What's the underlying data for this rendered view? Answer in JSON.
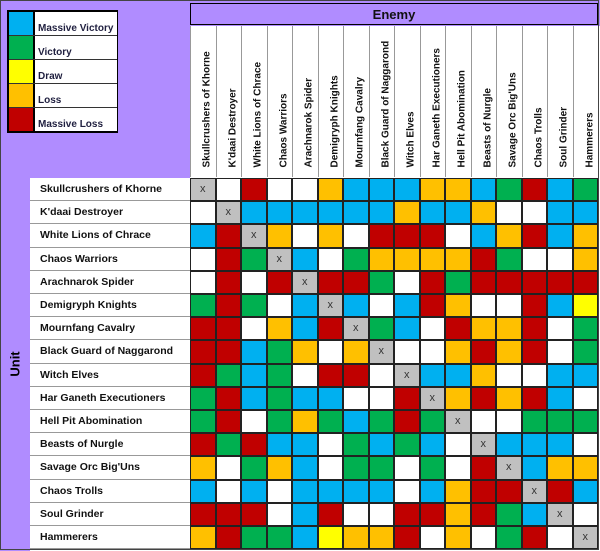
{
  "chart_data": {
    "type": "heatmap",
    "title": "Enemy",
    "ylabel": "Unit",
    "legend": [
      {
        "key": "MV",
        "label": "Massive Victory",
        "color": "#00b0f0"
      },
      {
        "key": "V",
        "label": "Victory",
        "color": "#00b050"
      },
      {
        "key": "D",
        "label": "Draw",
        "color": "#ffff00"
      },
      {
        "key": "L",
        "label": "Loss",
        "color": "#ffc000"
      },
      {
        "key": "ML",
        "label": "Massive Loss",
        "color": "#c00000"
      }
    ],
    "legend_placement": "top-left",
    "blank_color": "#ffffff",
    "self_color": "#c0c0c0",
    "self_mark": "x",
    "columns": [
      "Skullcrushers of Khorne",
      "K'daai Destroyer",
      "White Lions of Chrace",
      "Chaos Warriors",
      "Arachnarok Spider",
      "Demigryph Knights",
      "Mournfang Cavalry",
      "Black Guard of Naggarond",
      "Witch Elves",
      "Har Ganeth Executioners",
      "Hell Pit Abomination",
      "Beasts of Nurgle",
      "Savage Orc Big'Uns",
      "Chaos Trolls",
      "Soul Grinder",
      "Hammerers"
    ],
    "rows": [
      "Skullcrushers of Khorne",
      "K'daai Destroyer",
      "White Lions of Chrace",
      "Chaos Warriors",
      "Arachnarok Spider",
      "Demigryph Knights",
      "Mournfang Cavalry",
      "Black Guard of Naggarond",
      "Witch Elves",
      "Har Ganeth Executioners",
      "Hell Pit Abomination",
      "Beasts of Nurgle",
      "Savage Orc Big'Uns",
      "Chaos Trolls",
      "Soul Grinder",
      "Hammerers"
    ],
    "values": [
      [
        "X",
        "",
        "ML",
        "",
        "",
        "L",
        "MV",
        "MV",
        "MV",
        "L",
        "L",
        "MV",
        "V",
        "ML",
        "MV",
        "V"
      ],
      [
        "",
        "X",
        "MV",
        "MV",
        "MV",
        "MV",
        "MV",
        "MV",
        "L",
        "MV",
        "MV",
        "L",
        "",
        "",
        "MV",
        "MV"
      ],
      [
        "MV",
        "ML",
        "X",
        "L",
        "",
        "L",
        "",
        "ML",
        "ML",
        "ML",
        "",
        "MV",
        "L",
        "ML",
        "MV",
        "L"
      ],
      [
        "",
        "ML",
        "V",
        "X",
        "MV",
        "",
        "V",
        "L",
        "L",
        "L",
        "L",
        "ML",
        "V",
        "",
        "",
        "L"
      ],
      [
        "",
        "ML",
        "",
        "ML",
        "X",
        "ML",
        "ML",
        "V",
        "",
        "ML",
        "V",
        "ML",
        "ML",
        "ML",
        "ML",
        "ML"
      ],
      [
        "V",
        "ML",
        "V",
        "",
        "MV",
        "X",
        "MV",
        "",
        "MV",
        "ML",
        "L",
        "",
        "",
        "ML",
        "MV",
        "D"
      ],
      [
        "ML",
        "ML",
        "",
        "L",
        "MV",
        "ML",
        "X",
        "V",
        "MV",
        "",
        "ML",
        "L",
        "L",
        "ML",
        "",
        "V"
      ],
      [
        "ML",
        "ML",
        "MV",
        "V",
        "L",
        "",
        "L",
        "X",
        "",
        "",
        "L",
        "ML",
        "L",
        "ML",
        "",
        "V"
      ],
      [
        "ML",
        "V",
        "MV",
        "V",
        "",
        "ML",
        "ML",
        "",
        "X",
        "MV",
        "MV",
        "L",
        "",
        "",
        "MV",
        "MV"
      ],
      [
        "V",
        "ML",
        "MV",
        "V",
        "MV",
        "MV",
        "",
        "",
        "ML",
        "X",
        "L",
        "ML",
        "L",
        "ML",
        "MV",
        ""
      ],
      [
        "V",
        "ML",
        "",
        "V",
        "L",
        "V",
        "MV",
        "V",
        "ML",
        "V",
        "X",
        "",
        "",
        "V",
        "V",
        "V"
      ],
      [
        "ML",
        "V",
        "ML",
        "MV",
        "MV",
        "",
        "V",
        "MV",
        "V",
        "MV",
        "",
        "X",
        "MV",
        "MV",
        "MV",
        ""
      ],
      [
        "L",
        "",
        "V",
        "L",
        "MV",
        "",
        "V",
        "V",
        "",
        "V",
        "",
        "ML",
        "X",
        "MV",
        "L",
        "L"
      ],
      [
        "MV",
        "",
        "MV",
        "",
        "MV",
        "MV",
        "MV",
        "MV",
        "",
        "MV",
        "L",
        "ML",
        "ML",
        "X",
        "ML",
        "MV"
      ],
      [
        "ML",
        "ML",
        "ML",
        "",
        "MV",
        "ML",
        "",
        "",
        "ML",
        "ML",
        "L",
        "ML",
        "V",
        "MV",
        "X",
        ""
      ],
      [
        "L",
        "ML",
        "V",
        "V",
        "MV",
        "D",
        "L",
        "L",
        "ML",
        "",
        "L",
        "",
        "V",
        "ML",
        "",
        "X"
      ]
    ]
  }
}
